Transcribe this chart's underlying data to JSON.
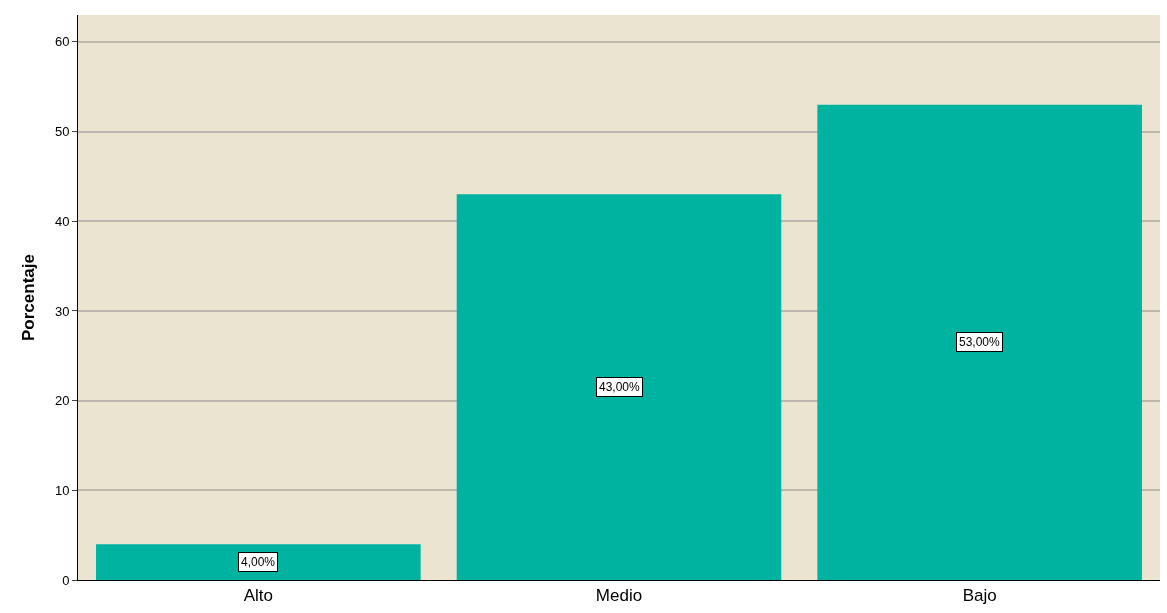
{
  "chart_data": {
    "type": "bar",
    "ylabel": "Porcentaje",
    "categories": [
      "Alto",
      "Medio",
      "Bajo"
    ],
    "values": [
      4,
      43,
      53
    ],
    "color": "#00b2a0",
    "value_labels": [
      "4,00%",
      "43,00%",
      "53,00%"
    ],
    "ylim": [
      0,
      63
    ],
    "yticks": [
      0,
      10,
      20,
      30,
      40,
      50,
      60
    ],
    "grid": "y"
  }
}
